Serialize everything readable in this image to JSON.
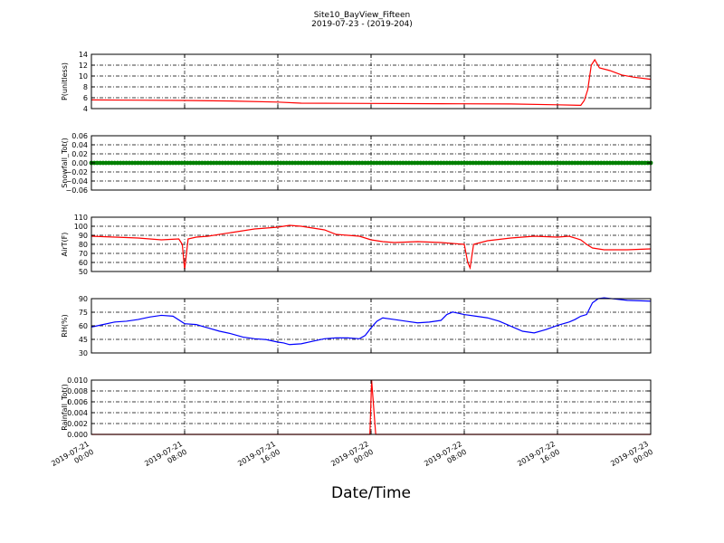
{
  "figure": {
    "title_line1": "Site10_BayView_Fifteen",
    "title_line2": "2019-07-23 - (2019-204)",
    "xlabel": "Date/Time",
    "x_ticks": [
      {
        "hours": 0,
        "line1": "2019-07-21",
        "line2": "00:00"
      },
      {
        "hours": 8,
        "line1": "2019-07-21",
        "line2": "08:00"
      },
      {
        "hours": 16,
        "line1": "2019-07-21",
        "line2": "16:00"
      },
      {
        "hours": 24,
        "line1": "2019-07-22",
        "line2": "00:00"
      },
      {
        "hours": 32,
        "line1": "2019-07-22",
        "line2": "08:00"
      },
      {
        "hours": 40,
        "line1": "2019-07-22",
        "line2": "16:00"
      },
      {
        "hours": 48,
        "line1": "2019-07-23",
        "line2": "00:00"
      }
    ]
  },
  "chart_data": [
    {
      "type": "line",
      "ylabel": "P(unitless)",
      "ylim": [
        4,
        14
      ],
      "yticks": [
        "4",
        "6",
        "8",
        "10",
        "12",
        "14"
      ],
      "color": "#ff0000",
      "grid": true,
      "x_range": [
        "2019-07-21 00:00",
        "2019-07-23 00:00"
      ],
      "points": [
        [
          0,
          5.6
        ],
        [
          4,
          5.55
        ],
        [
          8,
          5.5
        ],
        [
          12,
          5.4
        ],
        [
          16,
          5.2
        ],
        [
          18,
          5.0
        ],
        [
          24,
          4.95
        ],
        [
          30,
          4.9
        ],
        [
          36,
          4.85
        ],
        [
          40,
          4.7
        ],
        [
          42,
          4.6
        ],
        [
          42.3,
          5.5
        ],
        [
          42.6,
          7.5
        ],
        [
          42.9,
          12.0
        ],
        [
          43.2,
          13.0
        ],
        [
          43.6,
          11.5
        ],
        [
          44.5,
          11.0
        ],
        [
          45.5,
          10.2
        ],
        [
          46.5,
          9.8
        ],
        [
          48,
          9.4
        ]
      ]
    },
    {
      "type": "scatter",
      "ylabel": "Snowfall_Tot()",
      "ylim": [
        -0.06,
        0.06
      ],
      "yticks": [
        "−0.06",
        "−0.04",
        "−0.02",
        "0.00",
        "0.02",
        "0.04",
        "0.06"
      ],
      "color": "#008000",
      "grid": true,
      "constant_value": 0.0,
      "points": []
    },
    {
      "type": "line",
      "ylabel": "AirT(F)",
      "ylim": [
        50,
        110
      ],
      "yticks": [
        "50",
        "60",
        "70",
        "80",
        "90",
        "100",
        "110"
      ],
      "color": "#ff0000",
      "grid": true,
      "points": [
        [
          0,
          89
        ],
        [
          2,
          88
        ],
        [
          4,
          87
        ],
        [
          6,
          85
        ],
        [
          7.5,
          86
        ],
        [
          7.8,
          80
        ],
        [
          8,
          52
        ],
        [
          8.3,
          86
        ],
        [
          9,
          88
        ],
        [
          10,
          89
        ],
        [
          12,
          93
        ],
        [
          14,
          97
        ],
        [
          16,
          99
        ],
        [
          17,
          101
        ],
        [
          18,
          100
        ],
        [
          20,
          96
        ],
        [
          21,
          91
        ],
        [
          23,
          89
        ],
        [
          24,
          85
        ],
        [
          25,
          83
        ],
        [
          26,
          82
        ],
        [
          28,
          83
        ],
        [
          30,
          82
        ],
        [
          32,
          80
        ],
        [
          32.3,
          60
        ],
        [
          32.5,
          54
        ],
        [
          32.8,
          80
        ],
        [
          34,
          84
        ],
        [
          36,
          87
        ],
        [
          38,
          89
        ],
        [
          40,
          88
        ],
        [
          41,
          89
        ],
        [
          42,
          85
        ],
        [
          42.5,
          80
        ],
        [
          43,
          76
        ],
        [
          44,
          74
        ],
        [
          46,
          74
        ],
        [
          48,
          75
        ]
      ]
    },
    {
      "type": "line",
      "ylabel": "RH(%)",
      "ylim": [
        30,
        95
      ],
      "yticks": [
        "30",
        "45",
        "60",
        "75",
        "90"
      ],
      "color": "#0000ff",
      "grid": true,
      "points": [
        [
          0,
          61
        ],
        [
          1,
          64
        ],
        [
          2,
          67
        ],
        [
          3,
          68
        ],
        [
          4,
          70
        ],
        [
          5,
          73
        ],
        [
          6,
          75
        ],
        [
          7,
          74
        ],
        [
          8,
          65
        ],
        [
          9,
          64
        ],
        [
          10,
          60
        ],
        [
          11,
          56
        ],
        [
          12,
          53
        ],
        [
          13,
          49
        ],
        [
          14,
          47
        ],
        [
          15,
          46
        ],
        [
          16,
          43
        ],
        [
          16.5,
          42
        ],
        [
          17,
          40
        ],
        [
          18,
          41
        ],
        [
          19,
          44
        ],
        [
          20,
          47
        ],
        [
          21,
          48
        ],
        [
          22,
          48
        ],
        [
          23,
          47
        ],
        [
          23.5,
          51
        ],
        [
          24,
          60
        ],
        [
          24.5,
          68
        ],
        [
          25,
          72
        ],
        [
          26,
          70
        ],
        [
          27,
          68
        ],
        [
          28,
          66
        ],
        [
          29,
          67
        ],
        [
          30,
          69
        ],
        [
          30.5,
          76
        ],
        [
          31,
          79
        ],
        [
          32,
          76
        ],
        [
          33,
          74
        ],
        [
          34,
          72
        ],
        [
          35,
          68
        ],
        [
          36,
          62
        ],
        [
          37,
          56
        ],
        [
          38,
          54
        ],
        [
          39,
          58
        ],
        [
          40,
          63
        ],
        [
          41,
          67
        ],
        [
          41.5,
          70
        ],
        [
          42,
          74
        ],
        [
          42.5,
          76
        ],
        [
          43,
          90
        ],
        [
          43.5,
          95
        ],
        [
          44,
          96
        ],
        [
          46,
          93
        ],
        [
          48,
          92
        ]
      ]
    },
    {
      "type": "line",
      "ylabel": "Rainfall_Tot()",
      "ylim": [
        0,
        0.01
      ],
      "yticks": [
        "0.000",
        "0.002",
        "0.004",
        "0.006",
        "0.008",
        "0.010"
      ],
      "color": "#ff0000",
      "grid": true,
      "points": [
        [
          0,
          0
        ],
        [
          23.9,
          0
        ],
        [
          24.05,
          0.01
        ],
        [
          24.4,
          0
        ],
        [
          48,
          0
        ]
      ]
    }
  ]
}
